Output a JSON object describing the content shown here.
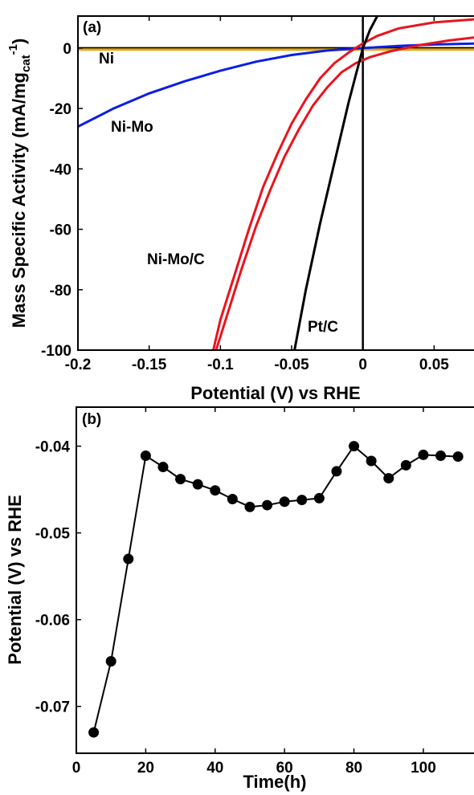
{
  "chart_data": [
    {
      "type": "line",
      "panel_label": "(a)",
      "xlabel": "Potential (V) vs RHE",
      "ylabel": "Mass Specific Activity (mA/mg",
      "ylabel_sub": "cat",
      "ylabel_sup": "-1",
      "ylabel_end": ")",
      "xlim": [
        -0.2,
        0.078
      ],
      "ylim": [
        -100,
        10.6
      ],
      "xticks": [
        -0.2,
        -0.15,
        -0.1,
        -0.05,
        0,
        0.05
      ],
      "yticks": [
        -100,
        -80,
        -60,
        -40,
        -20,
        0
      ],
      "zero_lines": true,
      "series": [
        {
          "name": "Ni",
          "color": "#e6a817",
          "x": [
            -0.2,
            0.078
          ],
          "values": [
            -0.5,
            -0.5
          ]
        },
        {
          "name": "Ni-Mo",
          "color": "#0a1ee6",
          "x": [
            -0.2,
            -0.175,
            -0.15,
            -0.125,
            -0.1,
            -0.075,
            -0.05,
            -0.025,
            0,
            0.025,
            0.05,
            0.078
          ],
          "values": [
            -26,
            -20,
            -15,
            -11,
            -7.5,
            -4.5,
            -2.3,
            -0.8,
            0,
            0.7,
            1.2,
            1.5
          ]
        },
        {
          "name": "Ni-Mo/C",
          "color": "#e8141e",
          "x": [
            -0.105,
            -0.1,
            -0.09,
            -0.08,
            -0.07,
            -0.06,
            -0.05,
            -0.04,
            -0.03,
            -0.02,
            -0.01,
            0,
            0.01,
            0.025,
            0.05,
            0.078
          ],
          "values": [
            -100,
            -90,
            -75,
            -60,
            -46,
            -35,
            -25,
            -17,
            -10,
            -5,
            -1.5,
            1.5,
            4,
            6.5,
            8.5,
            9.5
          ]
        },
        {
          "name": "Ni-Mo/C",
          "color": "#e8141e",
          "x": [
            -0.103,
            -0.095,
            -0.085,
            -0.075,
            -0.065,
            -0.055,
            -0.045,
            -0.035,
            -0.025,
            -0.015,
            -0.005,
            0.005,
            0.02,
            0.04,
            0.06,
            0.078
          ],
          "values": [
            -100,
            -88,
            -73,
            -59,
            -47,
            -36,
            -27,
            -19,
            -13,
            -8,
            -5,
            -3,
            -1,
            1,
            2.5,
            3.5
          ]
        },
        {
          "name": "Pt/C",
          "color": "#000000",
          "x": [
            -0.048,
            -0.04,
            -0.03,
            -0.02,
            -0.01,
            0,
            0.005,
            0.01
          ],
          "values": [
            -100,
            -80,
            -58,
            -38,
            -18,
            0,
            6,
            10.5
          ]
        }
      ],
      "annotations": [
        {
          "text": "Ni",
          "color": "#e6a817"
        },
        {
          "text": "Ni-Mo",
          "color": "#0a1ee6"
        },
        {
          "text": "Ni-Mo/C",
          "color": "#e8141e"
        },
        {
          "text": "Pt/C",
          "color": "#000000"
        }
      ]
    },
    {
      "type": "scatter-line",
      "panel_label": "(b)",
      "xlabel": "Time(h)",
      "ylabel": "Potential (V) vs RHE",
      "xlim": [
        0,
        114.6
      ],
      "ylim": [
        -0.0754,
        -0.0355
      ],
      "xticks": [
        0,
        20,
        40,
        60,
        80,
        100
      ],
      "yticks": [
        -0.07,
        -0.06,
        -0.05,
        -0.04
      ],
      "color": "#000000",
      "x": [
        5,
        10,
        15,
        20,
        25,
        30,
        35,
        40,
        45,
        50,
        55,
        60,
        65,
        70,
        75,
        80,
        85,
        90,
        95,
        100,
        105,
        110
      ],
      "values": [
        -0.073,
        -0.0648,
        -0.053,
        -0.0411,
        -0.0424,
        -0.0438,
        -0.0444,
        -0.0451,
        -0.0461,
        -0.047,
        -0.0468,
        -0.0464,
        -0.0462,
        -0.046,
        -0.0429,
        -0.04,
        -0.0417,
        -0.0437,
        -0.0422,
        -0.041,
        -0.0411,
        -0.0412
      ]
    }
  ]
}
